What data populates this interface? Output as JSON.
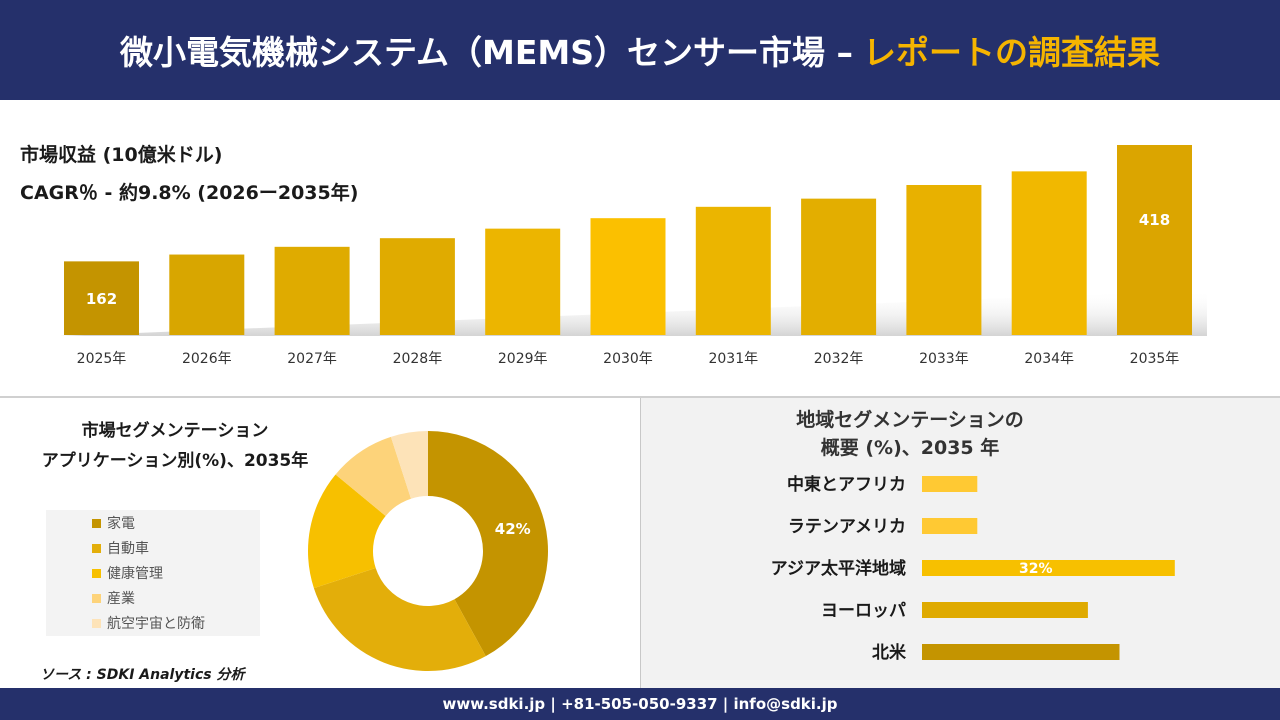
{
  "header": {
    "title_main": "微小電気機械システム（MEMS）センサー市場 –",
    "title_accent": "レポートの調査結果"
  },
  "chart_data": [
    {
      "type": "bar",
      "title": "市場収益 (10億米ドル)",
      "subtitle": "CAGR％ - 約9.8% (2026ー2035年)",
      "categories": [
        "2025年",
        "2026年",
        "2027年",
        "2028年",
        "2029年",
        "2030年",
        "2031年",
        "2032年",
        "2033年",
        "2034年",
        "2035年"
      ],
      "values": [
        162,
        177,
        194,
        213,
        234,
        257,
        282,
        300,
        330,
        360,
        418
      ],
      "data_labels": {
        "0": "162",
        "10": "418"
      },
      "colors": [
        "#c49400",
        "#d8a600",
        "#dfab00",
        "#e0ab00",
        "#ecb500",
        "#fbc000",
        "#ebb500",
        "#e3ae00",
        "#e8b100",
        "#f1b800",
        "#dba500"
      ]
    },
    {
      "type": "pie",
      "title": "市場セグメンテーション アプリケーション別(%)、2035年",
      "title_lines": [
        "市場セグメンテーション",
        "アプリケーション別(%)、2035年"
      ],
      "categories": [
        "家電",
        "自動車",
        "健康管理",
        "産業",
        "航空宇宙と防衛"
      ],
      "values": [
        42,
        28,
        16,
        9,
        5
      ],
      "data_labels": {
        "0": "42%"
      },
      "colors": [
        "#c49400",
        "#e3ae0a",
        "#f7c000",
        "#fdd37a",
        "#fde3b8"
      ]
    },
    {
      "type": "bar",
      "orientation": "horizontal",
      "title": "地域セグメンテーションの 概要 (%)、2035 年",
      "title_lines": [
        "地域セグメンテーションの",
        "概要 (%)、2035 年"
      ],
      "categories": [
        "中東とアフリカ",
        "ラテンアメリカ",
        "アジア太平洋地域",
        "ヨーロッパ",
        "北米"
      ],
      "values": [
        7,
        7,
        32,
        21,
        25
      ],
      "data_labels": {
        "2": "32%"
      },
      "colors": [
        "#ffc933",
        "#ffc933",
        "#f7c000",
        "#dfaa00",
        "#c49400"
      ]
    }
  ],
  "source": "ソース : SDKI Analytics 分析",
  "footer": {
    "contact": "www.sdki.jp | +81-505-050-9337 | info@sdki.jp"
  }
}
